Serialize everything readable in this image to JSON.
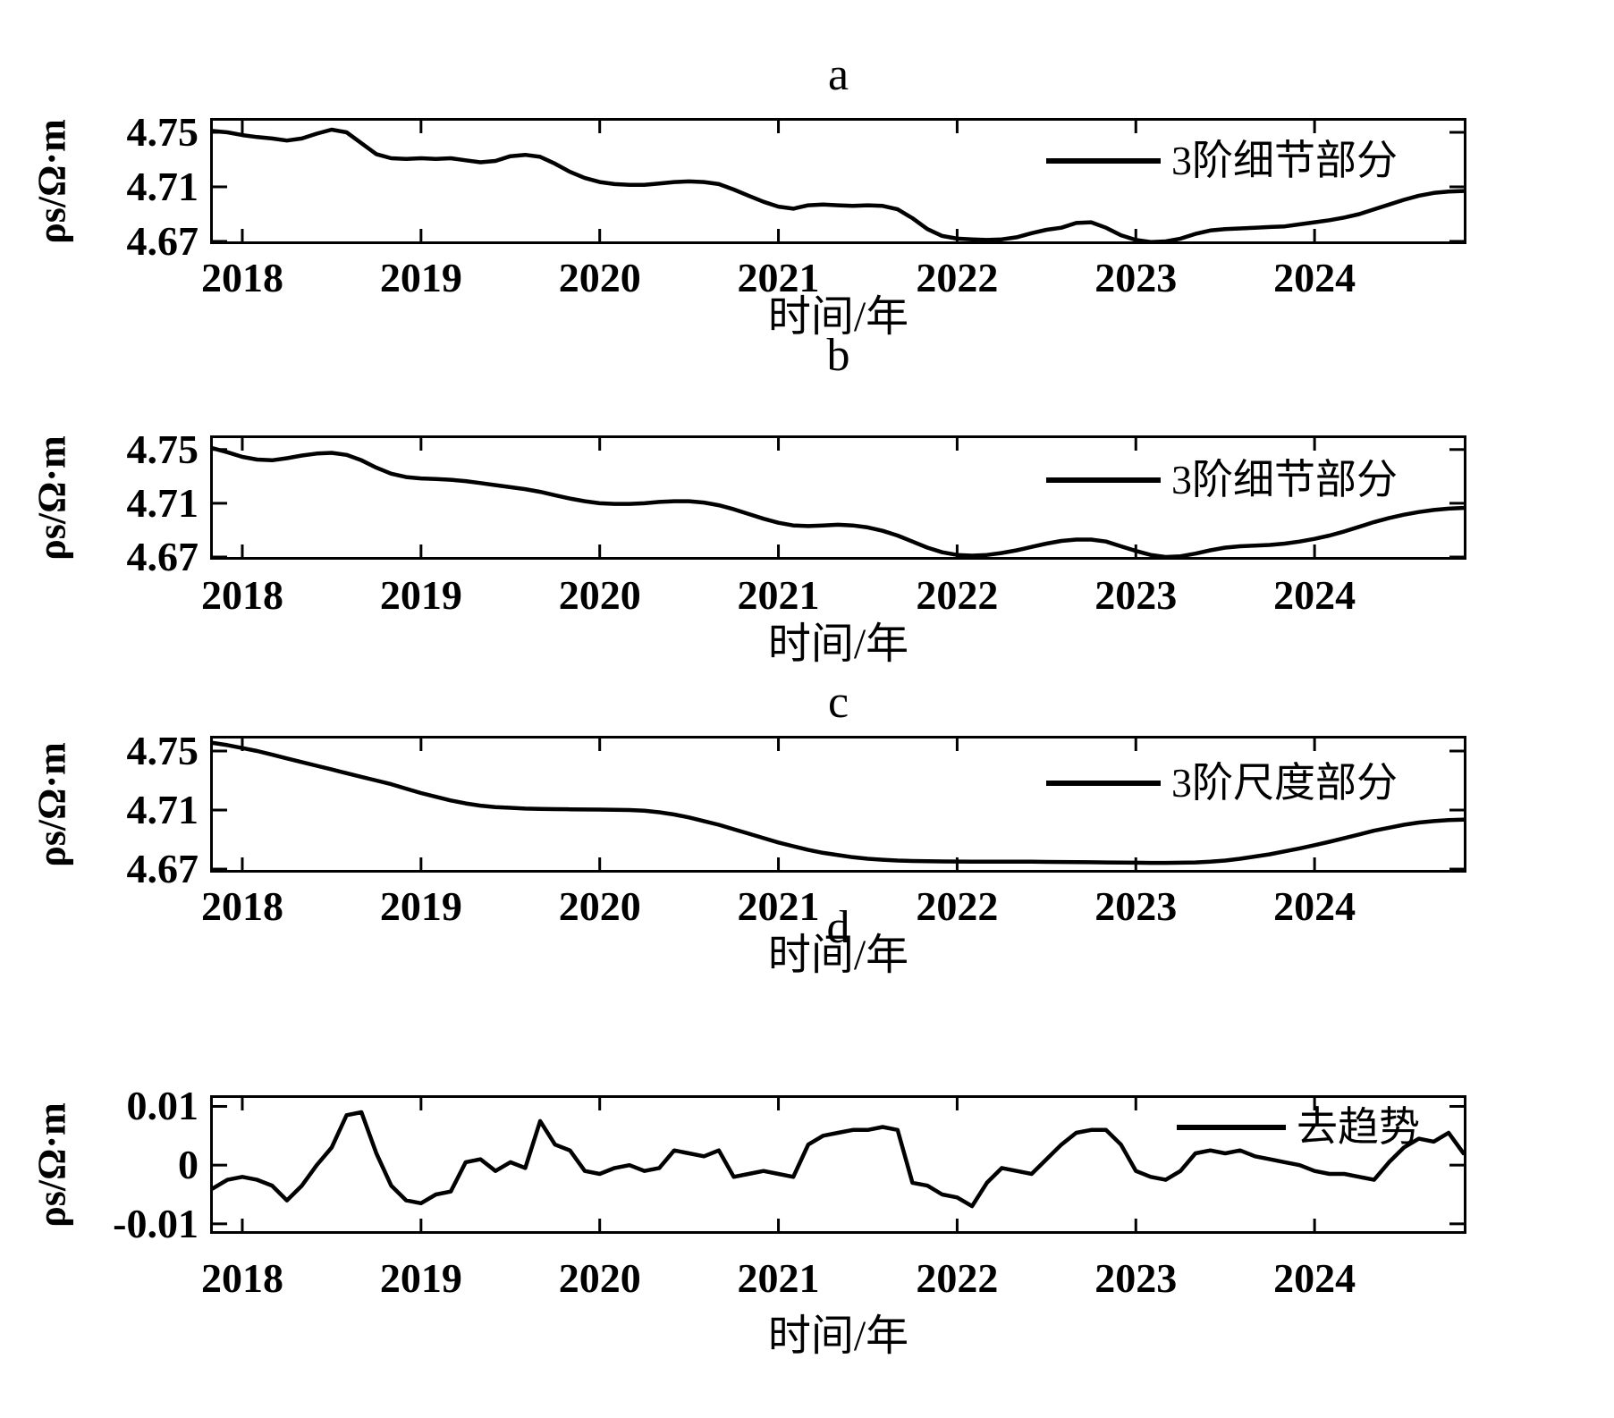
{
  "figure": {
    "background": "#ffffff",
    "line_color": "#000000"
  },
  "chart_data": {
    "type": "line",
    "x_axis": {
      "label": "时间/年",
      "range": [
        2017.82,
        2024.85
      ],
      "ticks": [
        2018,
        2019,
        2020,
        2021,
        2022,
        2023,
        2024
      ],
      "tick_labels": [
        "2018",
        "2019",
        "2020",
        "2021",
        "2022",
        "2023",
        "2024"
      ],
      "x_start": 2017.8333,
      "x_step": 0.0833333,
      "n_points": 85
    },
    "panels": [
      {
        "id": "a",
        "title": "a",
        "legend": "3阶细节部分",
        "ylabel": "ρs/Ω·m",
        "xlabel": "时间/年",
        "yticks": [
          4.75,
          4.71,
          4.67
        ],
        "ytick_labels": [
          "4.75",
          "4.71",
          "4.67"
        ],
        "ylim": [
          4.668,
          4.7605
        ],
        "values": [
          4.751,
          4.75,
          4.748,
          4.7465,
          4.7455,
          4.744,
          4.7455,
          4.749,
          4.752,
          4.75,
          4.742,
          4.734,
          4.731,
          4.7305,
          4.731,
          4.7305,
          4.731,
          4.7295,
          4.728,
          4.729,
          4.7325,
          4.7335,
          4.732,
          4.727,
          4.721,
          4.7165,
          4.7135,
          4.712,
          4.7115,
          4.7115,
          4.7125,
          4.7135,
          4.714,
          4.7135,
          4.712,
          4.708,
          4.7035,
          4.699,
          4.6955,
          4.694,
          4.6965,
          4.697,
          4.6965,
          4.696,
          4.6965,
          4.696,
          4.6935,
          4.687,
          4.679,
          4.674,
          4.672,
          4.6715,
          4.671,
          4.6715,
          4.673,
          4.676,
          4.6785,
          4.68,
          4.6835,
          4.684,
          4.68,
          4.6745,
          4.671,
          4.6695,
          4.67,
          4.672,
          4.6755,
          4.678,
          4.679,
          4.6795,
          4.68,
          4.6805,
          4.681,
          4.6825,
          4.684,
          4.6855,
          4.6875,
          4.69,
          4.6935,
          4.697,
          4.7005,
          4.7035,
          4.7055,
          4.7065,
          4.707
        ]
      },
      {
        "id": "b",
        "title": "b",
        "legend": "3阶细节部分",
        "ylabel": "ρs/Ω·m",
        "xlabel": "时间/年",
        "yticks": [
          4.75,
          4.71,
          4.67
        ],
        "ytick_labels": [
          "4.75",
          "4.71",
          "4.67"
        ],
        "ylim": [
          4.668,
          4.7605
        ],
        "values": [
          4.751,
          4.748,
          4.7445,
          4.7425,
          4.742,
          4.7435,
          4.7455,
          4.747,
          4.7475,
          4.746,
          4.742,
          4.7365,
          4.732,
          4.7295,
          4.7285,
          4.728,
          4.7275,
          4.7265,
          4.725,
          4.7235,
          4.722,
          4.7205,
          4.7185,
          4.716,
          4.7135,
          4.7115,
          4.71,
          4.7095,
          4.7095,
          4.71,
          4.711,
          4.7115,
          4.7115,
          4.7105,
          4.7085,
          4.7055,
          4.702,
          4.6985,
          4.6955,
          4.6935,
          4.693,
          4.6935,
          4.694,
          4.6935,
          4.692,
          4.6895,
          4.686,
          4.6815,
          4.677,
          4.6735,
          4.6715,
          4.671,
          4.6715,
          4.673,
          4.675,
          4.6775,
          4.68,
          4.682,
          4.683,
          4.683,
          4.6815,
          4.678,
          4.6745,
          4.6715,
          4.67,
          4.6705,
          4.6725,
          4.675,
          4.677,
          4.678,
          4.6785,
          4.679,
          4.68,
          4.6815,
          4.6835,
          4.686,
          4.689,
          4.6925,
          4.696,
          4.699,
          4.7015,
          4.7035,
          4.705,
          4.706,
          4.7065
        ]
      },
      {
        "id": "c",
        "title": "c",
        "legend": "3阶尺度部分",
        "ylabel": "ρs/Ω·m",
        "xlabel": "时间/年",
        "yticks": [
          4.75,
          4.71,
          4.67
        ],
        "ytick_labels": [
          "4.75",
          "4.71",
          "4.67"
        ],
        "ylim": [
          4.6676,
          4.7603
        ],
        "values": [
          4.7555,
          4.754,
          4.752,
          4.75,
          4.7475,
          4.745,
          4.7425,
          4.74,
          4.7375,
          4.735,
          4.7325,
          4.73,
          4.7275,
          4.7245,
          4.7215,
          4.719,
          4.7165,
          4.7145,
          4.713,
          4.712,
          4.7115,
          4.711,
          4.7108,
          4.7106,
          4.7105,
          4.7104,
          4.7103,
          4.7102,
          4.71,
          4.7095,
          4.7085,
          4.707,
          4.705,
          4.7025,
          4.7,
          4.697,
          4.694,
          4.691,
          4.688,
          4.6855,
          4.683,
          4.681,
          4.6795,
          4.678,
          4.677,
          4.6763,
          4.6758,
          4.6755,
          4.6753,
          4.6752,
          4.6751,
          4.675,
          4.675,
          4.675,
          4.675,
          4.675,
          4.6749,
          4.6748,
          4.6747,
          4.6746,
          4.6745,
          4.6744,
          4.6743,
          4.6742,
          4.6742,
          4.6743,
          4.6745,
          4.675,
          4.6758,
          4.677,
          4.6785,
          4.68,
          4.682,
          4.684,
          4.6862,
          4.6885,
          4.691,
          4.6935,
          4.696,
          4.698,
          4.7,
          4.7015,
          4.7025,
          4.7032,
          4.7035
        ]
      },
      {
        "id": "d",
        "title": "d",
        "legend": "去趋势",
        "ylabel": "ρs/Ω·m",
        "xlabel": "时间/年",
        "yticks": [
          0.01,
          0,
          -0.01
        ],
        "ytick_labels": [
          "0.01",
          "0",
          "-0.01"
        ],
        "ylim": [
          -0.0117,
          0.0119
        ],
        "values": [
          -0.004,
          -0.0025,
          -0.002,
          -0.0025,
          -0.0035,
          -0.006,
          -0.0035,
          0.0,
          0.003,
          0.0085,
          0.009,
          0.002,
          -0.0035,
          -0.006,
          -0.0065,
          -0.005,
          -0.0045,
          0.0005,
          0.001,
          -0.001,
          0.0005,
          -0.0005,
          0.0075,
          0.0035,
          0.0025,
          -0.001,
          -0.0015,
          -0.0005,
          0.0,
          -0.001,
          -0.0005,
          0.0025,
          0.002,
          0.0015,
          0.0025,
          -0.002,
          -0.0015,
          -0.001,
          -0.0015,
          -0.002,
          0.0035,
          0.005,
          0.0055,
          0.006,
          0.006,
          0.0065,
          0.006,
          -0.003,
          -0.0035,
          -0.005,
          -0.0055,
          -0.007,
          -0.003,
          -0.0005,
          -0.001,
          -0.0015,
          0.001,
          0.0035,
          0.0055,
          0.006,
          0.006,
          0.0035,
          -0.001,
          -0.002,
          -0.0025,
          -0.001,
          0.002,
          0.0025,
          0.002,
          0.0025,
          0.0015,
          0.001,
          0.0005,
          0.0,
          -0.001,
          -0.0015,
          -0.0015,
          -0.002,
          -0.0025,
          0.0005,
          0.003,
          0.0045,
          0.004,
          0.0055,
          0.002
        ]
      }
    ]
  }
}
